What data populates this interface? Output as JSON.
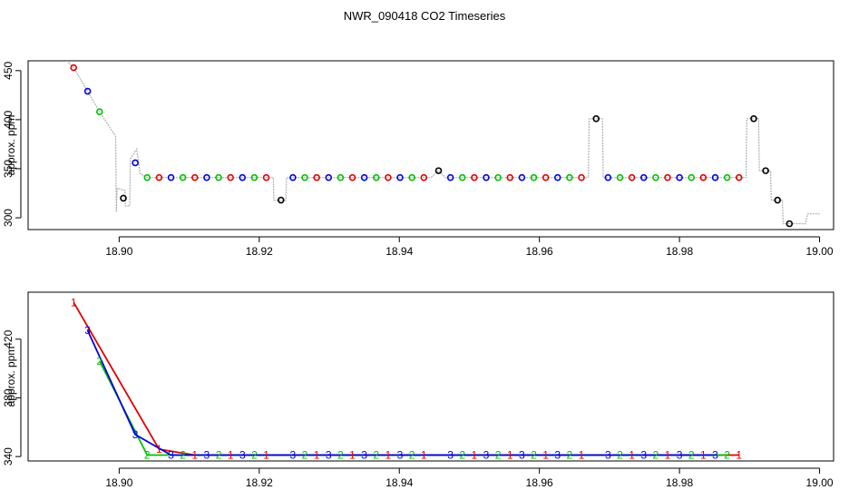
{
  "title": "NWR_090418  CO2 Timeseries",
  "colors": {
    "1": "#e00000",
    "2": "#00c000",
    "3": "#0000e0",
    "flag": "#000000",
    "trace": "#b0b0b0"
  },
  "chart_data": [
    {
      "type": "scatter",
      "ylabel": "approx. ppm",
      "xlim": [
        18.887,
        19.002
      ],
      "ylim": [
        288,
        460
      ],
      "xticks": [
        18.9,
        18.92,
        18.94,
        18.96,
        18.98,
        19.0
      ],
      "xtick_labels": [
        "18.90",
        "18.92",
        "18.94",
        "18.96",
        "18.98",
        "19.00"
      ],
      "yticks": [
        300,
        350,
        400,
        450
      ],
      "ytick_labels": [
        "300",
        "350",
        "400",
        "450"
      ],
      "points": [
        {
          "x": 18.8935,
          "y": 453,
          "c": "1"
        },
        {
          "x": 18.8955,
          "y": 429,
          "c": "3"
        },
        {
          "x": 18.8972,
          "y": 408,
          "c": "2"
        },
        {
          "x": 18.9006,
          "y": 320,
          "c": "flag"
        },
        {
          "x": 18.9023,
          "y": 356,
          "c": "3"
        },
        {
          "x": 18.904,
          "y": 341,
          "c": "2"
        },
        {
          "x": 18.9057,
          "y": 341,
          "c": "1"
        },
        {
          "x": 18.9074,
          "y": 341,
          "c": "3"
        },
        {
          "x": 18.9091,
          "y": 341,
          "c": "2"
        },
        {
          "x": 18.9108,
          "y": 341,
          "c": "1"
        },
        {
          "x": 18.9125,
          "y": 341,
          "c": "3"
        },
        {
          "x": 18.9142,
          "y": 341,
          "c": "2"
        },
        {
          "x": 18.9159,
          "y": 341,
          "c": "1"
        },
        {
          "x": 18.9176,
          "y": 341,
          "c": "3"
        },
        {
          "x": 18.9193,
          "y": 341,
          "c": "2"
        },
        {
          "x": 18.921,
          "y": 341,
          "c": "1"
        },
        {
          "x": 18.9231,
          "y": 318,
          "c": "flag"
        },
        {
          "x": 18.9248,
          "y": 341,
          "c": "3"
        },
        {
          "x": 18.9265,
          "y": 341,
          "c": "2"
        },
        {
          "x": 18.9282,
          "y": 341,
          "c": "1"
        },
        {
          "x": 18.9299,
          "y": 341,
          "c": "3"
        },
        {
          "x": 18.9316,
          "y": 341,
          "c": "2"
        },
        {
          "x": 18.9333,
          "y": 341,
          "c": "1"
        },
        {
          "x": 18.935,
          "y": 341,
          "c": "3"
        },
        {
          "x": 18.9367,
          "y": 341,
          "c": "2"
        },
        {
          "x": 18.9384,
          "y": 341,
          "c": "1"
        },
        {
          "x": 18.9401,
          "y": 341,
          "c": "3"
        },
        {
          "x": 18.9418,
          "y": 341,
          "c": "2"
        },
        {
          "x": 18.9435,
          "y": 341,
          "c": "1"
        },
        {
          "x": 18.9456,
          "y": 348,
          "c": "flag"
        },
        {
          "x": 18.9473,
          "y": 341,
          "c": "3"
        },
        {
          "x": 18.949,
          "y": 341,
          "c": "2"
        },
        {
          "x": 18.9507,
          "y": 341,
          "c": "1"
        },
        {
          "x": 18.9524,
          "y": 341,
          "c": "3"
        },
        {
          "x": 18.9541,
          "y": 341,
          "c": "2"
        },
        {
          "x": 18.9558,
          "y": 341,
          "c": "1"
        },
        {
          "x": 18.9575,
          "y": 341,
          "c": "3"
        },
        {
          "x": 18.9592,
          "y": 341,
          "c": "2"
        },
        {
          "x": 18.9609,
          "y": 341,
          "c": "1"
        },
        {
          "x": 18.9626,
          "y": 341,
          "c": "3"
        },
        {
          "x": 18.9643,
          "y": 341,
          "c": "2"
        },
        {
          "x": 18.966,
          "y": 341,
          "c": "1"
        },
        {
          "x": 18.9681,
          "y": 401,
          "c": "flag"
        },
        {
          "x": 18.9698,
          "y": 341,
          "c": "3"
        },
        {
          "x": 18.9715,
          "y": 341,
          "c": "2"
        },
        {
          "x": 18.9732,
          "y": 341,
          "c": "1"
        },
        {
          "x": 18.9749,
          "y": 341,
          "c": "3"
        },
        {
          "x": 18.9766,
          "y": 341,
          "c": "2"
        },
        {
          "x": 18.9783,
          "y": 341,
          "c": "1"
        },
        {
          "x": 18.98,
          "y": 341,
          "c": "3"
        },
        {
          "x": 18.9817,
          "y": 341,
          "c": "2"
        },
        {
          "x": 18.9834,
          "y": 341,
          "c": "1"
        },
        {
          "x": 18.9851,
          "y": 341,
          "c": "3"
        },
        {
          "x": 18.9868,
          "y": 341,
          "c": "2"
        },
        {
          "x": 18.9885,
          "y": 341,
          "c": "1"
        },
        {
          "x": 18.9906,
          "y": 401,
          "c": "flag"
        },
        {
          "x": 18.9923,
          "y": 348,
          "c": "flag"
        },
        {
          "x": 18.994,
          "y": 318,
          "c": "flag"
        },
        {
          "x": 18.9957,
          "y": 294,
          "c": "flag"
        }
      ],
      "trace": [
        [
          18.8925,
          460
        ],
        [
          18.8935,
          453
        ],
        [
          18.8955,
          429
        ],
        [
          18.8972,
          408
        ],
        [
          18.8995,
          383
        ],
        [
          18.8996,
          306
        ],
        [
          18.8997,
          330
        ],
        [
          18.9008,
          328
        ],
        [
          18.9009,
          312
        ],
        [
          18.9015,
          312
        ],
        [
          18.9016,
          360
        ],
        [
          18.9025,
          370
        ],
        [
          18.903,
          345
        ],
        [
          18.904,
          341
        ],
        [
          18.922,
          341
        ],
        [
          18.9221,
          318
        ],
        [
          18.9238,
          318
        ],
        [
          18.9239,
          341
        ],
        [
          18.9445,
          341
        ],
        [
          18.9456,
          348
        ],
        [
          18.9466,
          341
        ],
        [
          18.967,
          341
        ],
        [
          18.9671,
          401
        ],
        [
          18.969,
          401
        ],
        [
          18.9691,
          341
        ],
        [
          18.9895,
          341
        ],
        [
          18.9896,
          401
        ],
        [
          18.9913,
          401
        ],
        [
          18.9914,
          348
        ],
        [
          18.993,
          348
        ],
        [
          18.9931,
          318
        ],
        [
          18.9947,
          318
        ],
        [
          18.9948,
          294
        ],
        [
          18.998,
          294
        ],
        [
          18.9983,
          304
        ],
        [
          19.0,
          304
        ]
      ]
    },
    {
      "type": "line",
      "ylabel": "approx. ppm",
      "xlim": [
        18.887,
        19.002
      ],
      "ylim": [
        337,
        452
      ],
      "xticks": [
        18.9,
        18.92,
        18.94,
        18.96,
        18.98,
        19.0
      ],
      "xtick_labels": [
        "18.90",
        "18.92",
        "18.94",
        "18.96",
        "18.98",
        "19.00"
      ],
      "yticks": [
        340,
        380,
        420
      ],
      "ytick_labels": [
        "340",
        "380",
        "420"
      ],
      "series": [
        {
          "name": "1",
          "x": [
            18.8935,
            18.9057,
            18.9108,
            18.9159,
            18.921,
            18.9282,
            18.9333,
            18.9384,
            18.9435,
            18.9507,
            18.9558,
            18.9609,
            18.966,
            18.9732,
            18.9783,
            18.9834,
            18.9885
          ],
          "y": [
            445,
            345,
            341,
            341,
            341,
            341,
            341,
            341,
            341,
            341,
            341,
            341,
            341,
            341,
            341,
            341,
            341
          ]
        },
        {
          "name": "2",
          "x": [
            18.8972,
            18.904,
            18.9091,
            18.9142,
            18.9193,
            18.9265,
            18.9316,
            18.9367,
            18.9418,
            18.949,
            18.9541,
            18.9592,
            18.9643,
            18.9715,
            18.9766,
            18.9817,
            18.9868
          ],
          "y": [
            405,
            341,
            341,
            341,
            341,
            341,
            341,
            341,
            341,
            341,
            341,
            341,
            341,
            341,
            341,
            341,
            341
          ]
        },
        {
          "name": "3",
          "x": [
            18.8955,
            18.9023,
            18.9074,
            18.9125,
            18.9176,
            18.9248,
            18.9299,
            18.935,
            18.9401,
            18.9473,
            18.9524,
            18.9575,
            18.9626,
            18.9698,
            18.9749,
            18.98,
            18.9851
          ],
          "y": [
            426,
            355,
            341,
            341,
            341,
            341,
            341,
            341,
            341,
            341,
            341,
            341,
            341,
            341,
            341,
            341,
            341
          ]
        }
      ]
    }
  ]
}
